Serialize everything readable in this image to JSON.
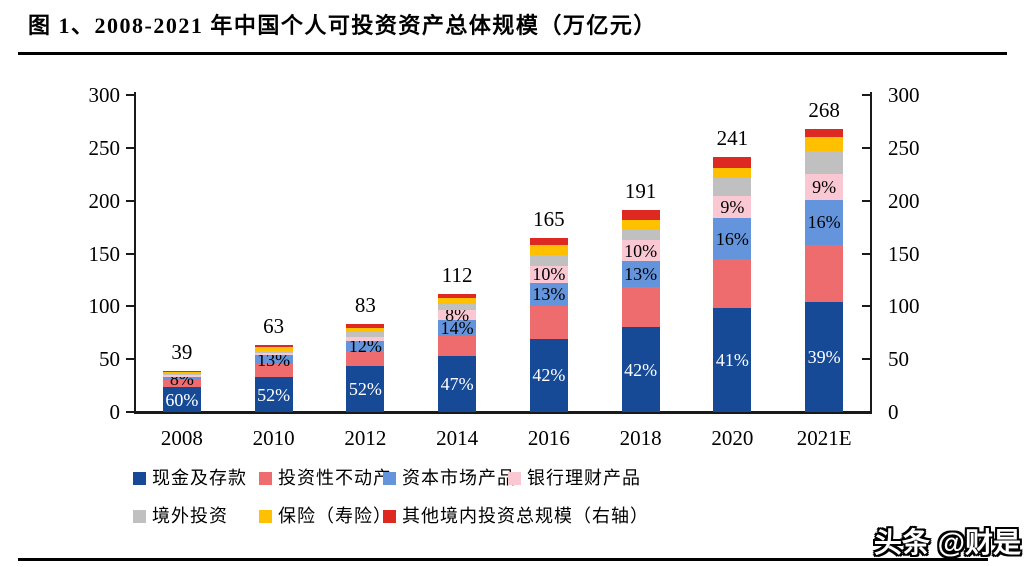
{
  "title": "图 1、2008-2021 年中国个人可投资资产总体规模（万亿元）",
  "watermark": "头条 @财是",
  "chart_data": {
    "type": "bar",
    "stacked": true,
    "title": "2008-2021 年中国个人可投资资产总体规模（万亿元）",
    "categories": [
      "2008",
      "2010",
      "2012",
      "2014",
      "2016",
      "2018",
      "2020",
      "2021E"
    ],
    "totals": [
      39,
      63,
      83,
      112,
      165,
      191,
      241,
      268
    ],
    "total_series_name": "总规模（右轴）",
    "axis": {
      "ylim": [
        0,
        300
      ],
      "ticks": [
        0,
        50,
        100,
        150,
        200,
        250,
        300
      ],
      "left_axis": true,
      "right_axis": true,
      "grid": false
    },
    "series": [
      {
        "name": "现金及存款",
        "color": "#164A96",
        "pct": [
          60,
          52,
          52,
          47,
          42,
          42,
          41,
          39
        ],
        "labels": [
          "60%",
          "52%",
          "52%",
          "47%",
          "42%",
          "42%",
          "41%",
          "39%"
        ],
        "label_color": "#ffffff"
      },
      {
        "name": "投资性不动产",
        "color": "#EE6C6E",
        "pct": [
          17,
          20,
          17,
          17,
          19,
          20,
          19,
          20
        ],
        "labels": [
          null,
          null,
          null,
          null,
          null,
          null,
          null,
          null
        ],
        "label_color": "#000000"
      },
      {
        "name": "资本市场产品",
        "color": "#6394DC",
        "pct": [
          8,
          13,
          12,
          14,
          13,
          13,
          16,
          16
        ],
        "labels": [
          "8%",
          "13%",
          "12%",
          "14%",
          "13%",
          "13%",
          "16%",
          "16%"
        ],
        "label_color": "#000000"
      },
      {
        "name": "银行理财产品",
        "color": "#FAC8D3",
        "pct": [
          5,
          4,
          5,
          8,
          10,
          10,
          9,
          9
        ],
        "labels": [
          null,
          null,
          null,
          "8%",
          "10%",
          "10%",
          "9%",
          "9%"
        ],
        "label_color": "#000000"
      },
      {
        "name": "境外投资",
        "color": "#C0C0C0",
        "pct": [
          3,
          3,
          5,
          5,
          6,
          5,
          7,
          8
        ],
        "labels": [
          null,
          null,
          null,
          null,
          null,
          null,
          null,
          null
        ],
        "label_color": "#000000"
      },
      {
        "name": "保险（寿险）",
        "color": "#FFC000",
        "pct": [
          5,
          5,
          5,
          5,
          6,
          5,
          4,
          5
        ],
        "labels": [
          null,
          null,
          null,
          null,
          null,
          null,
          null,
          null
        ],
        "label_color": "#000000"
      },
      {
        "name": "其他境内投资",
        "color": "#DE2822",
        "pct": [
          2,
          3,
          4,
          4,
          4,
          5,
          4,
          3
        ],
        "labels": [
          null,
          null,
          null,
          null,
          null,
          null,
          null,
          null
        ],
        "label_color": "#000000"
      }
    ],
    "legend_rows": [
      [
        {
          "label": "现金及存款",
          "series": 0
        },
        {
          "label": "投资性不动产",
          "series": 1
        },
        {
          "label": "资本市场产品",
          "series": 2
        },
        {
          "label": "银行理财产品",
          "series": 3
        }
      ],
      [
        {
          "label": "境外投资",
          "series": 4
        },
        {
          "label": "保险（寿险）",
          "series": 5
        },
        {
          "label": "其他境内投资",
          "series": 6
        },
        {
          "label": "总规模（右轴）",
          "series": null
        }
      ]
    ]
  }
}
